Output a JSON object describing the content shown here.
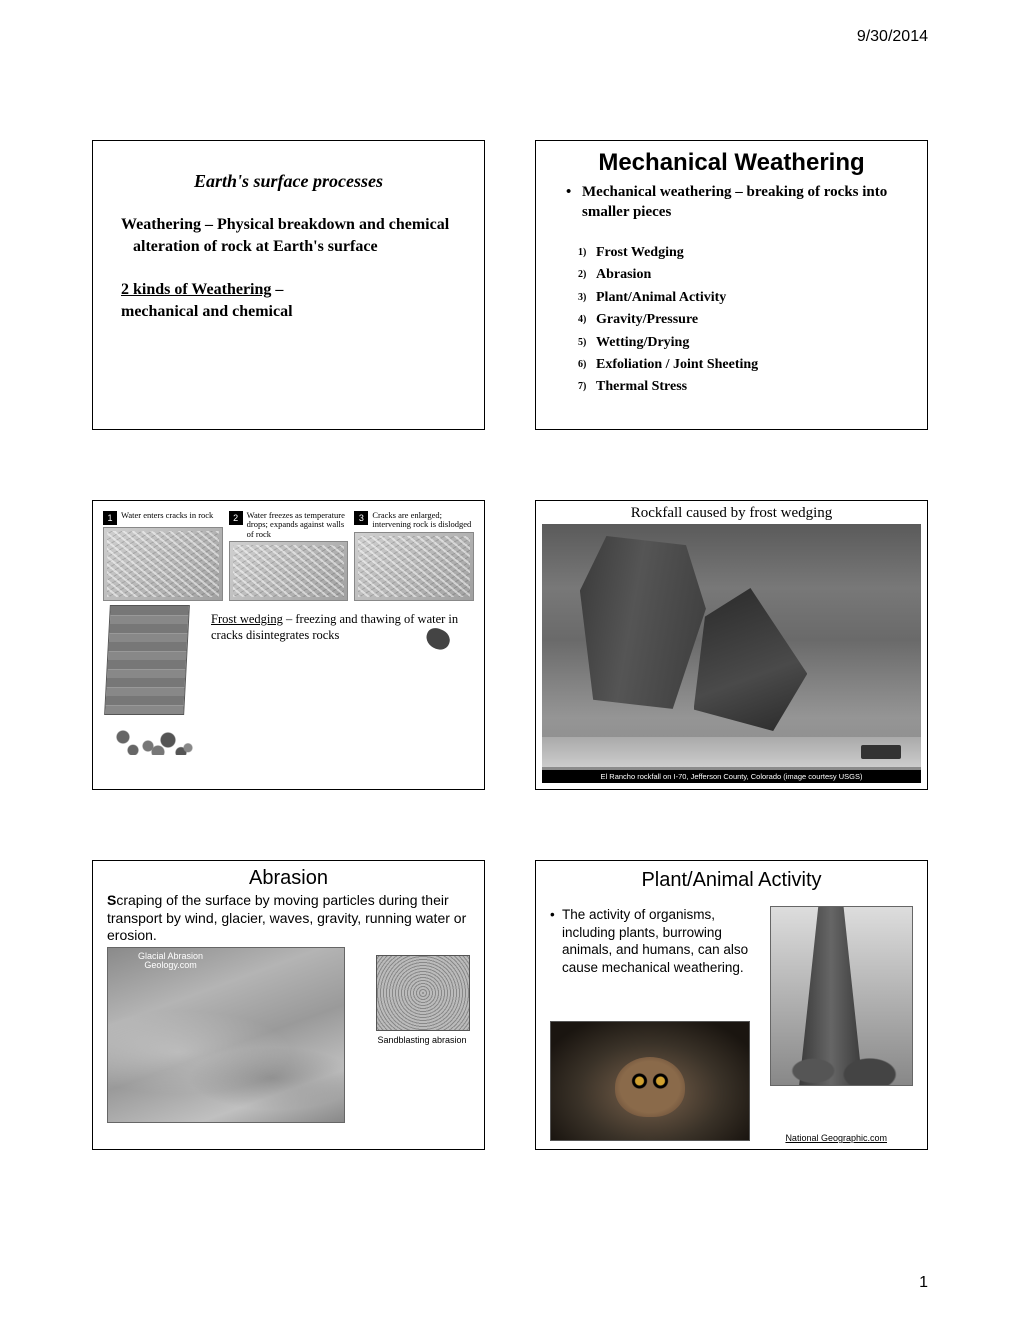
{
  "page": {
    "date": "9/30/2014",
    "number": "1"
  },
  "slide1": {
    "title": "Earth's surface processes",
    "para1": "Weathering – Physical breakdown and chemical alteration of rock at Earth's surface",
    "para2a": "2 kinds of Weathering",
    "para2b": " –",
    "para3": "mechanical and chemical"
  },
  "slide2": {
    "title": "Mechanical Weathering",
    "bullet": "Mechanical weathering – breaking of rocks into smaller pieces",
    "items": [
      "Frost Wedging",
      "Abrasion",
      "Plant/Animal Activity",
      "Gravity/Pressure",
      "Wetting/Drying",
      "Exfoliation / Joint Sheeting",
      "Thermal Stress"
    ]
  },
  "slide3": {
    "steps": [
      {
        "num": "1",
        "text": "Water enters cracks in rock"
      },
      {
        "num": "2",
        "text": "Water freezes as temperature drops; expands against walls of rock"
      },
      {
        "num": "3",
        "text": "Cracks are enlarged; intervening rock is dislodged"
      }
    ],
    "caption_u": "Frost wedging",
    "caption_rest": " – freezing and thawing of water in cracks disintegrates rocks"
  },
  "slide4": {
    "title": "Rockfall caused by frost wedging",
    "credit": "El Rancho rockfall on I-70, Jefferson County, Colorado (image courtesy USGS)"
  },
  "slide5": {
    "title": "Abrasion",
    "desc_bold": "S",
    "desc_rest": "craping of the surface by moving particles during their transport by wind, glacier, waves, gravity, running water or erosion.",
    "big_label_1": "Glacial Abrasion",
    "big_label_2": "Geology.com",
    "small_label": "Sandblasting abrasion"
  },
  "slide6": {
    "title": "Plant/Animal Activity",
    "text": "The activity of organisms, including plants, burrowing animals, and humans, can also cause mechanical weathering.",
    "credit": "National Geographic.com"
  }
}
